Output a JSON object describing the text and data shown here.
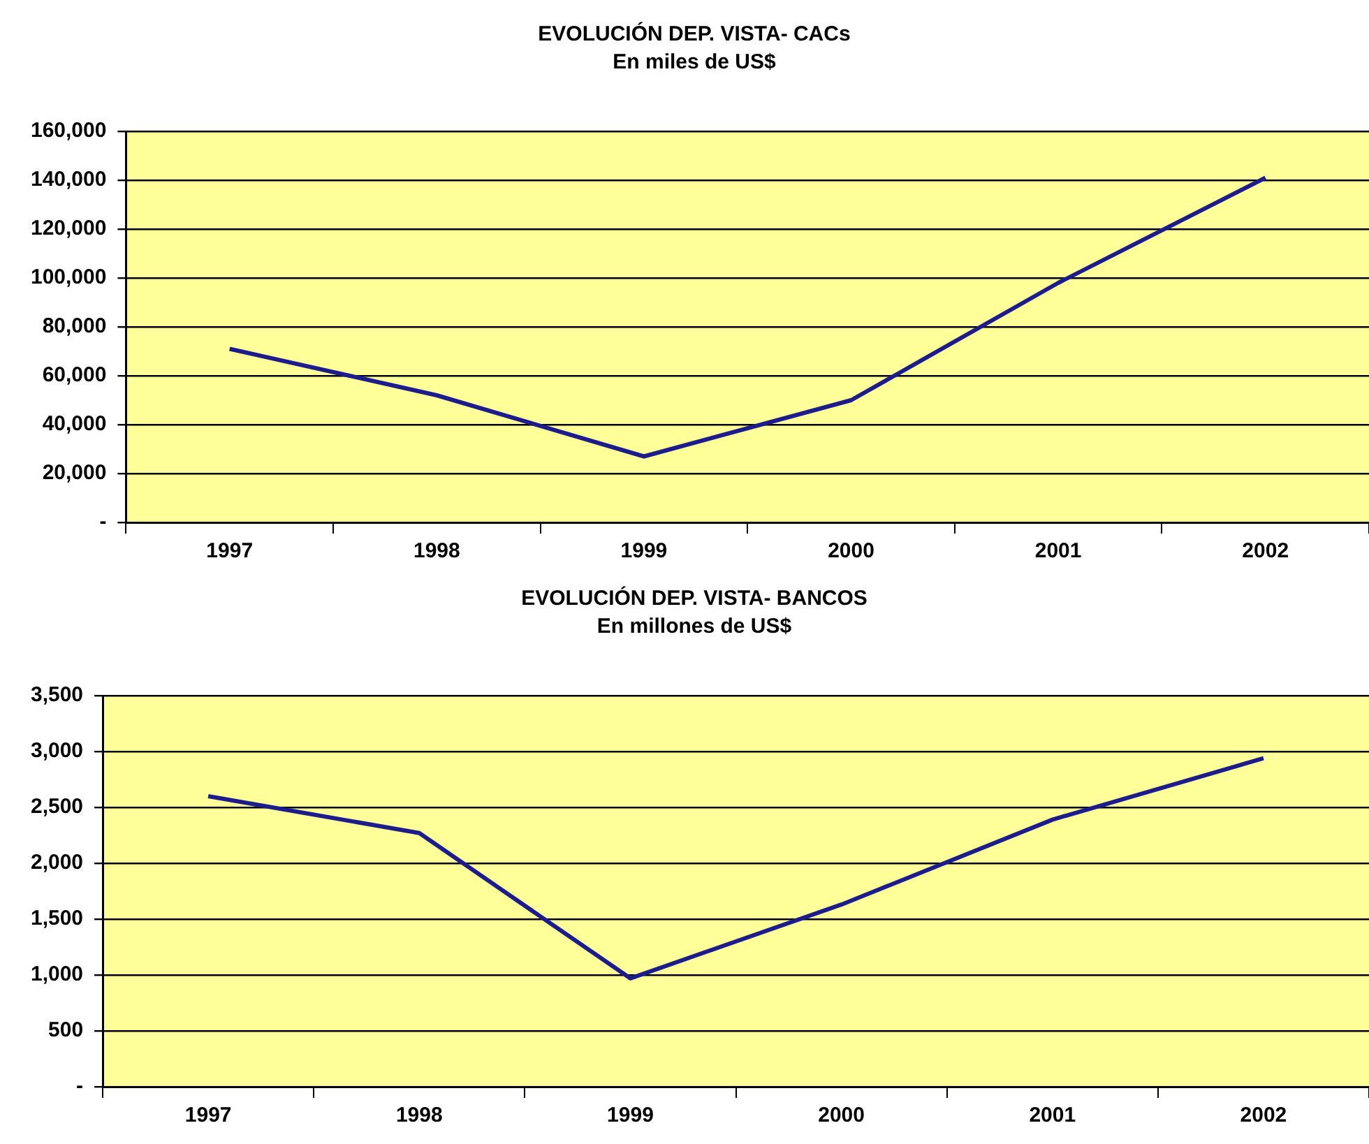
{
  "chart_data": [
    {
      "type": "line",
      "title": "EVOLUCIÓN DEP. VISTA- CACs",
      "subtitle": "En miles de US$",
      "categories": [
        "1997",
        "1998",
        "1999",
        "2000",
        "2001",
        "2002"
      ],
      "series": [
        {
          "color": "#1c1c8c",
          "values": [
            71000,
            52000,
            27000,
            50000,
            98000,
            141000
          ]
        }
      ],
      "ylim": [
        0,
        160000
      ],
      "yticks": [
        {
          "value": 0,
          "label": "-"
        },
        {
          "value": 20000,
          "label": "20,000"
        },
        {
          "value": 40000,
          "label": "40,000"
        },
        {
          "value": 60000,
          "label": "60,000"
        },
        {
          "value": 80000,
          "label": "80,000"
        },
        {
          "value": 100000,
          "label": "100,000"
        },
        {
          "value": 120000,
          "label": "120,000"
        },
        {
          "value": 140000,
          "label": "140,000"
        },
        {
          "value": 160000,
          "label": "160,000"
        }
      ],
      "grid": "y",
      "legend": false,
      "marker": "none"
    },
    {
      "type": "line",
      "title": "EVOLUCIÓN DEP. VISTA- BANCOS",
      "subtitle": "En millones de US$",
      "categories": [
        "1997",
        "1998",
        "1999",
        "2000",
        "2001",
        "2002"
      ],
      "series": [
        {
          "color": "#1c1c8c",
          "values": [
            2600,
            2270,
            970,
            1630,
            2390,
            2940
          ]
        }
      ],
      "ylim": [
        0,
        3500
      ],
      "yticks": [
        {
          "value": 0,
          "label": "-"
        },
        {
          "value": 500,
          "label": "500"
        },
        {
          "value": 1000,
          "label": "1,000"
        },
        {
          "value": 1500,
          "label": "1,500"
        },
        {
          "value": 2000,
          "label": "2,000"
        },
        {
          "value": 2500,
          "label": "2,500"
        },
        {
          "value": 3000,
          "label": "3,000"
        },
        {
          "value": 3500,
          "label": "3,500"
        }
      ],
      "grid": "y",
      "legend": false,
      "marker": "none"
    }
  ]
}
